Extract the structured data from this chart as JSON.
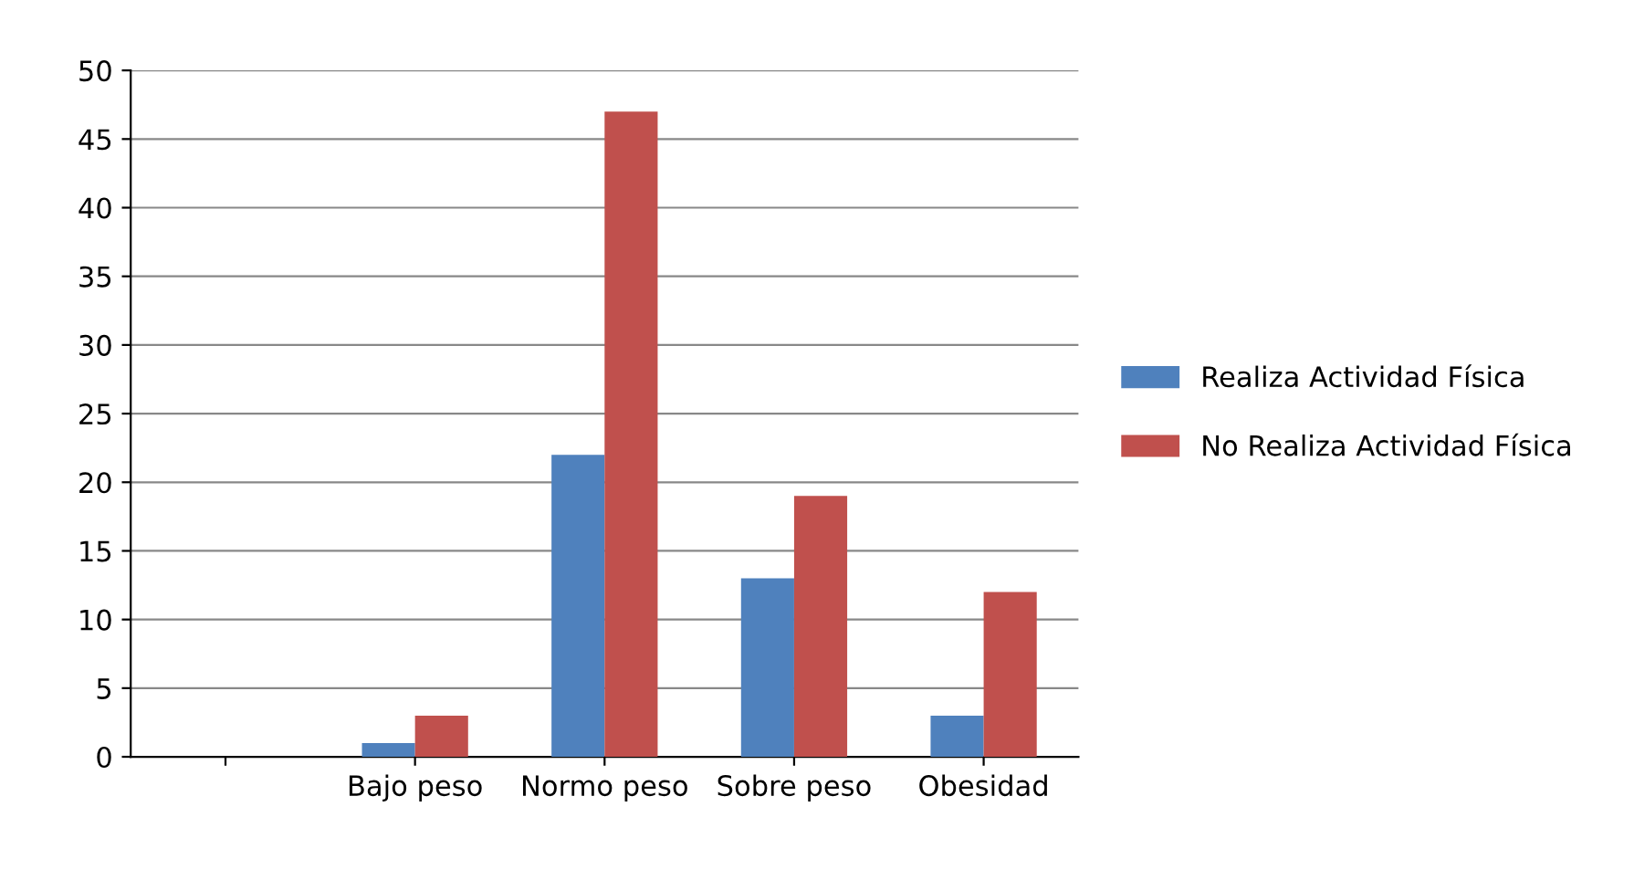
{
  "chart_data": {
    "type": "bar",
    "categories": [
      null,
      "Bajo peso",
      "Normo peso",
      "Sobre peso",
      "Obesidad"
    ],
    "series": [
      {
        "name": "Realiza Actividad Física",
        "color": "#4f81bd",
        "values": [
          null,
          1,
          22,
          13,
          3
        ]
      },
      {
        "name": "No Realiza Actividad Física",
        "color": "#c0504d",
        "values": [
          null,
          3,
          47,
          19,
          12
        ]
      }
    ],
    "ylim": [
      0,
      50
    ],
    "yticks": [
      0,
      5,
      10,
      15,
      20,
      25,
      30,
      35,
      40,
      45,
      50
    ],
    "grid": "y",
    "legend": "right"
  }
}
